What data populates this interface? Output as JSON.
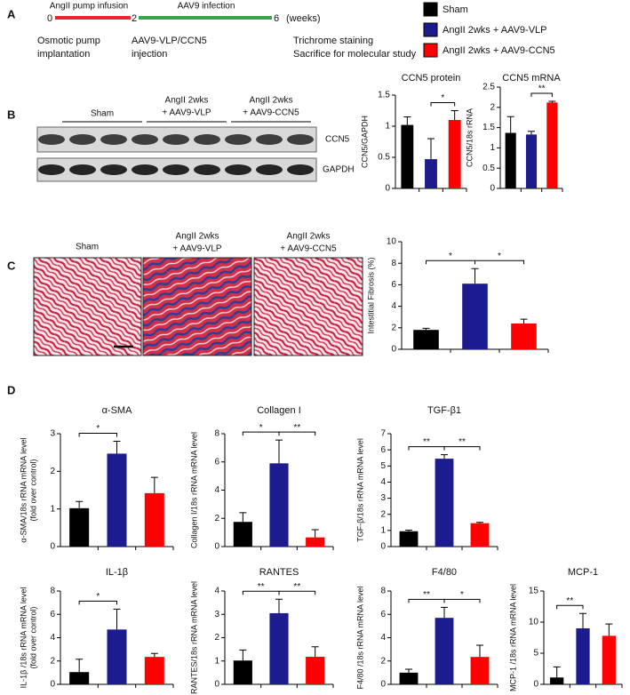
{
  "panel_labels": [
    "A",
    "B",
    "C",
    "D"
  ],
  "timeline": {
    "phase1": "AngII pump infusion",
    "phase2": "AAV9 infection",
    "ticks": [
      "0",
      "2",
      "6"
    ],
    "unit": "(weeks)",
    "events": [
      [
        "Osmotic pump",
        "implantation"
      ],
      [
        "AAV9-VLP/CCN5",
        "injection"
      ],
      [
        "Trichrome staining",
        "Sacrifice for molecular study"
      ]
    ]
  },
  "legend": [
    {
      "name": "Sham",
      "color": "#000000"
    },
    {
      "name": "AngII 2wks + AAV9-VLP",
      "color": "#1c1c8e"
    },
    {
      "name": "AngII 2wks + AAV9-CCN5",
      "color": "#ff0000"
    }
  ],
  "blot": {
    "groups": [
      [
        "Sham"
      ],
      [
        "AngII 2wks",
        "+ AAV9-VLP"
      ],
      [
        "AngII 2wks",
        "+ AAV9-CCN5"
      ]
    ],
    "bands": [
      "CCN5",
      "GAPDH"
    ]
  },
  "histology": {
    "groups": [
      [
        "Sham"
      ],
      [
        "AngII 2wks",
        "+ AAV9-VLP"
      ],
      [
        "AngII 2wks",
        "+ AAV9-CCN5"
      ]
    ]
  },
  "chart_data": [
    {
      "type": "bar",
      "title": "CCN5 protein",
      "ylabel": [
        "CCN5/GAPDH"
      ],
      "categories": [
        null,
        null,
        null
      ],
      "values": [
        1.02,
        0.47,
        1.1
      ],
      "errors": [
        0.13,
        0.33,
        0.15
      ],
      "colors": [
        "#000000",
        "#1c1c8e",
        "#ff0000"
      ],
      "ylim": [
        0,
        1.5
      ],
      "yticks": [
        0,
        0.5,
        1,
        1.5
      ],
      "brackets": [
        {
          "between": [
            1,
            2
          ],
          "label": "*"
        }
      ]
    },
    {
      "type": "bar",
      "title": "CCN5 mRNA",
      "ylabel": [
        "CCN5/18s rRNA"
      ],
      "categories": [
        null,
        null,
        null
      ],
      "values": [
        1.37,
        1.33,
        2.12
      ],
      "errors": [
        0.4,
        0.08,
        0.03
      ],
      "colors": [
        "#000000",
        "#1c1c8e",
        "#ff0000"
      ],
      "ylim": [
        0,
        2.5
      ],
      "yticks": [
        0,
        0.5,
        1,
        1.5,
        2,
        2.5
      ],
      "brackets": [
        {
          "between": [
            1,
            2
          ],
          "label": "**"
        }
      ]
    },
    {
      "type": "bar",
      "ylabel": [
        "Intestitial Fibrosis (%)"
      ],
      "categories": [
        null,
        null,
        null
      ],
      "values": [
        1.8,
        6.1,
        2.4
      ],
      "errors": [
        0.15,
        1.4,
        0.4
      ],
      "colors": [
        "#000000",
        "#1c1c8e",
        "#ff0000"
      ],
      "ylim": [
        0,
        10
      ],
      "yticks": [
        0,
        2,
        4,
        6,
        8,
        10
      ],
      "brackets": [
        {
          "between": [
            0,
            1
          ],
          "label": "*"
        },
        {
          "between": [
            1,
            2
          ],
          "label": "*"
        }
      ]
    },
    {
      "type": "bar",
      "title": "α-SMA",
      "ylabel": [
        "α-SMA/18s rRNA mRNA level",
        "(fold over control)"
      ],
      "categories": [
        null,
        null,
        null
      ],
      "values": [
        1.02,
        2.47,
        1.42
      ],
      "errors": [
        0.18,
        0.33,
        0.42
      ],
      "colors": [
        "#000000",
        "#1c1c8e",
        "#ff0000"
      ],
      "ylim": [
        0,
        3
      ],
      "yticks": [
        0,
        1,
        2,
        3
      ],
      "brackets": [
        {
          "between": [
            0,
            1
          ],
          "label": "*"
        }
      ]
    },
    {
      "type": "bar",
      "title": "Collagen I",
      "ylabel": [
        "Collagen I/18s rRNA mRNA level"
      ],
      "categories": [
        null,
        null,
        null
      ],
      "values": [
        1.75,
        5.9,
        0.65
      ],
      "errors": [
        0.65,
        1.65,
        0.55
      ],
      "colors": [
        "#000000",
        "#1c1c8e",
        "#ff0000"
      ],
      "ylim": [
        0,
        8
      ],
      "yticks": [
        0,
        2,
        4,
        6,
        8
      ],
      "brackets": [
        {
          "between": [
            0,
            1
          ],
          "label": "*"
        },
        {
          "between": [
            1,
            2
          ],
          "label": "**"
        }
      ]
    },
    {
      "type": "bar",
      "title": "TGF-β1",
      "ylabel": [
        "TGF-β/18s rRNA mRNA level"
      ],
      "categories": [
        null,
        null,
        null
      ],
      "values": [
        0.95,
        5.45,
        1.45
      ],
      "errors": [
        0.07,
        0.25,
        0.05
      ],
      "colors": [
        "#000000",
        "#1c1c8e",
        "#ff0000"
      ],
      "ylim": [
        0,
        7
      ],
      "yticks": [
        0,
        1,
        2,
        3,
        4,
        5,
        6,
        7
      ],
      "brackets": [
        {
          "between": [
            0,
            1
          ],
          "label": "**"
        },
        {
          "between": [
            1,
            2
          ],
          "label": "**"
        }
      ]
    },
    {
      "type": "bar",
      "title": "IL-1β",
      "ylabel": [
        "IL-1β /18s rRNA mRNA level",
        "(fold over control)"
      ],
      "categories": [
        null,
        null,
        null
      ],
      "values": [
        1.05,
        4.7,
        2.35
      ],
      "errors": [
        1.1,
        1.75,
        0.3
      ],
      "colors": [
        "#000000",
        "#1c1c8e",
        "#ff0000"
      ],
      "ylim": [
        0,
        8
      ],
      "yticks": [
        0,
        2,
        4,
        6,
        8
      ],
      "brackets": [
        {
          "between": [
            0,
            1
          ],
          "label": "*"
        }
      ]
    },
    {
      "type": "bar",
      "title": "RANTES",
      "ylabel": [
        "RANTES/18s rRNA mRNA level"
      ],
      "categories": [
        null,
        null,
        null
      ],
      "values": [
        1.02,
        3.05,
        1.18
      ],
      "errors": [
        0.45,
        0.6,
        0.43
      ],
      "colors": [
        "#000000",
        "#1c1c8e",
        "#ff0000"
      ],
      "ylim": [
        0,
        4
      ],
      "yticks": [
        0,
        1,
        2,
        3,
        4
      ],
      "brackets": [
        {
          "between": [
            0,
            1
          ],
          "label": "**"
        },
        {
          "between": [
            1,
            2
          ],
          "label": "**"
        }
      ]
    },
    {
      "type": "bar",
      "title": "F4/80",
      "ylabel": [
        "F4/80 /18s rRNA mRNA level"
      ],
      "categories": [
        null,
        null,
        null
      ],
      "values": [
        1.0,
        5.7,
        2.35
      ],
      "errors": [
        0.3,
        0.9,
        1.0
      ],
      "colors": [
        "#000000",
        "#1c1c8e",
        "#ff0000"
      ],
      "ylim": [
        0,
        8
      ],
      "yticks": [
        0,
        2,
        4,
        6,
        8
      ],
      "brackets": [
        {
          "between": [
            0,
            1
          ],
          "label": "**"
        },
        {
          "between": [
            1,
            2
          ],
          "label": "*"
        }
      ]
    },
    {
      "type": "bar",
      "title": "MCP-1",
      "ylabel": [
        "MCP-1 /18s rRNA mRNA level"
      ],
      "categories": [
        null,
        null,
        null
      ],
      "values": [
        1.1,
        9.0,
        7.8
      ],
      "errors": [
        1.7,
        2.4,
        1.9
      ],
      "colors": [
        "#000000",
        "#1c1c8e",
        "#ff0000"
      ],
      "ylim": [
        0,
        15
      ],
      "yticks": [
        0,
        5,
        10,
        15
      ],
      "brackets": [
        {
          "between": [
            0,
            1
          ],
          "label": "**"
        }
      ]
    }
  ]
}
